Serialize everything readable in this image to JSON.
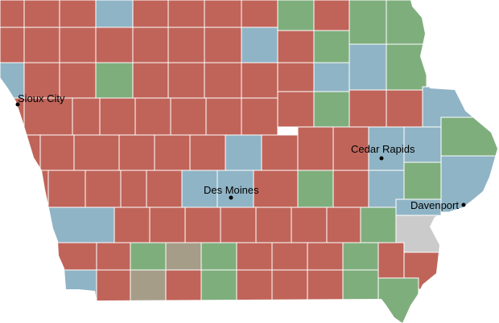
{
  "colors": {
    "red": "#c0645a",
    "blue": "#8fb4c6",
    "green": "#7fae7d",
    "tan": "#a59d88",
    "gray": "#cbcbcb"
  },
  "cities": [
    {
      "name": "Sioux City"
    },
    {
      "name": "Cedar Rapids"
    },
    {
      "name": "Des Moines"
    },
    {
      "name": "Davenport"
    }
  ]
}
